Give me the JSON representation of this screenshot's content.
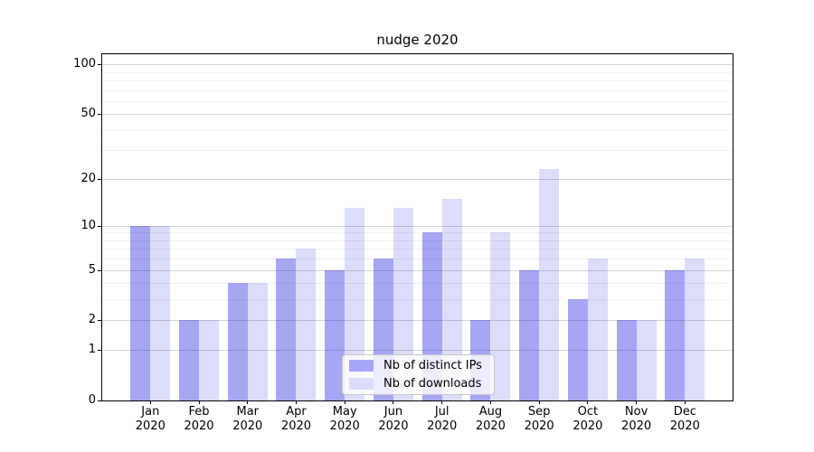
{
  "chart_data": {
    "type": "bar",
    "title": "nudge 2020",
    "categories": [
      "Jan",
      "Feb",
      "Mar",
      "Apr",
      "May",
      "Jun",
      "Jul",
      "Aug",
      "Sep",
      "Oct",
      "Nov",
      "Dec"
    ],
    "category_year": "2020",
    "series": [
      {
        "name": "Nb of distinct IPs",
        "color": "#a6a6f5",
        "values": [
          10,
          2,
          4,
          6,
          5,
          6,
          9,
          2,
          5,
          3,
          2,
          5
        ]
      },
      {
        "name": "Nb of downloads",
        "color": "#dcdcfb",
        "values": [
          10,
          2,
          4,
          7,
          13,
          13,
          15,
          9,
          23,
          6,
          2,
          6
        ]
      }
    ],
    "yscale": "log1p",
    "ylim": [
      0,
      115
    ],
    "yticks": [
      0,
      1,
      2,
      5,
      10,
      20,
      50,
      100
    ],
    "yticks_minor": [
      3,
      4,
      6,
      7,
      8,
      9,
      30,
      40,
      60,
      70,
      80,
      90
    ],
    "grid": "on",
    "legend": {
      "position": "lower center inside plot"
    }
  }
}
